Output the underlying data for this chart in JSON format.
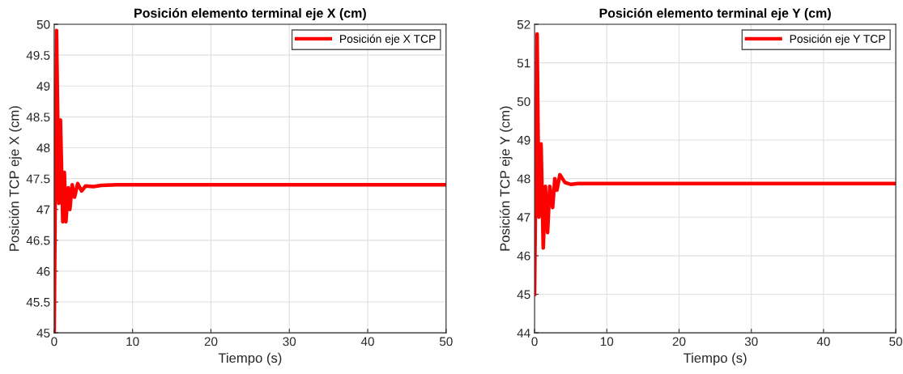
{
  "chart_data": [
    {
      "type": "line",
      "title": "Posición elemento terminal eje X (cm)",
      "xlabel": "Tiempo (s)",
      "ylabel": "Posición TCP eje X (cm)",
      "series": [
        {
          "name": "Posición eje X TCP",
          "color": "#ff0000",
          "x": [
            0,
            0.3,
            0.5,
            0.6,
            0.8,
            1.1,
            1.3,
            1.5,
            1.8,
            2.0,
            2.3,
            2.6,
            3.0,
            3.5,
            4.0,
            5.0,
            6.0,
            8.0,
            50
          ],
          "values": [
            45,
            49.9,
            48,
            47.1,
            48.45,
            46.8,
            47.6,
            46.8,
            47.35,
            47.0,
            47.4,
            47.2,
            47.42,
            47.3,
            47.38,
            47.37,
            47.39,
            47.4,
            47.4
          ]
        }
      ],
      "xlim": [
        0,
        50
      ],
      "xticks": [
        0,
        10,
        20,
        30,
        40,
        50
      ],
      "ylim": [
        45,
        50
      ],
      "yticks": [
        45,
        45.5,
        46,
        46.5,
        47,
        47.5,
        48,
        48.5,
        49,
        49.5,
        50
      ],
      "grid": true,
      "legend": "top right",
      "marker": "none",
      "line_style": "solid"
    },
    {
      "type": "line",
      "title": "Posición elemento terminal eje Y (cm)",
      "xlabel": "Tiempo (s)",
      "ylabel": "Posición TCP eje Y (cm)",
      "series": [
        {
          "name": "Posición eje Y TCP",
          "color": "#ff0000",
          "x": [
            0,
            0.35,
            0.6,
            0.9,
            1.2,
            1.5,
            1.8,
            2.1,
            2.5,
            2.8,
            3.1,
            3.5,
            4.2,
            5.0,
            6.0,
            50
          ],
          "values": [
            45,
            51.75,
            47,
            48.9,
            46.2,
            47.8,
            46.6,
            47.8,
            47.25,
            48.0,
            47.7,
            48.1,
            47.9,
            47.85,
            47.87,
            47.87
          ]
        }
      ],
      "xlim": [
        0,
        50
      ],
      "xticks": [
        0,
        10,
        20,
        30,
        40,
        50
      ],
      "ylim": [
        44,
        52
      ],
      "yticks": [
        44,
        45,
        46,
        47,
        48,
        49,
        50,
        51,
        52
      ],
      "grid": true,
      "legend": "top right",
      "marker": "none",
      "line_style": "solid"
    }
  ]
}
